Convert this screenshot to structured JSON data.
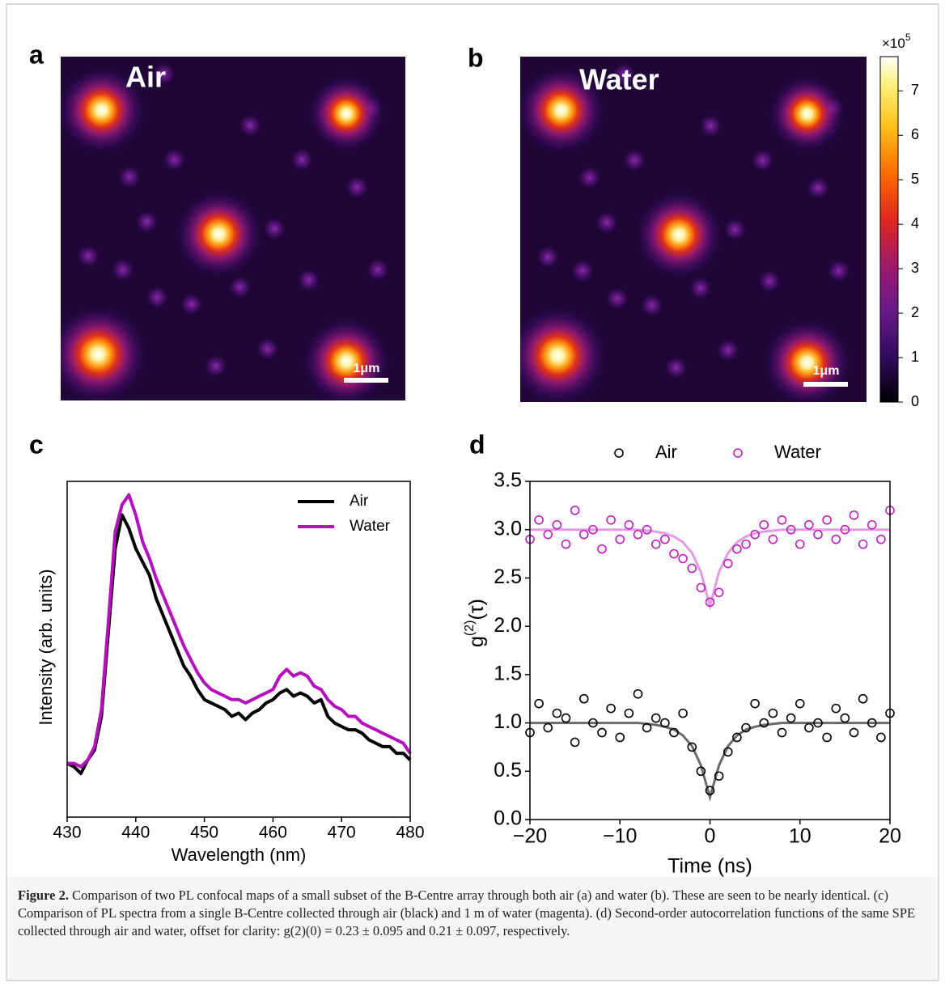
{
  "panels": {
    "a": {
      "letter": "a",
      "medium": "Air",
      "scalebar": "1μm"
    },
    "b": {
      "letter": "b",
      "medium": "Water",
      "scalebar": "1μm"
    }
  },
  "chart_data": [
    {
      "type": "colorbar",
      "ylim": [
        0,
        7.77
      ],
      "yticks": [
        0,
        1,
        2,
        3,
        4,
        5,
        6,
        7
      ],
      "multiplier": {
        "base": "×10",
        "exponent": "5"
      }
    },
    {
      "type": "line",
      "panel_label": "c",
      "xlabel": "Wavelength (nm)",
      "ylabel": "Intensity (arb. units)",
      "x": [
        430,
        431,
        432,
        433,
        434,
        435,
        436,
        437,
        438,
        439,
        440,
        441,
        442,
        443,
        444,
        445,
        446,
        447,
        448,
        449,
        450,
        451,
        452,
        453,
        454,
        455,
        456,
        457,
        458,
        459,
        460,
        461,
        462,
        463,
        464,
        465,
        466,
        467,
        468,
        469,
        470,
        471,
        472,
        473,
        474,
        475,
        476,
        477,
        478,
        479,
        480
      ],
      "xlim": [
        430,
        480
      ],
      "xticks": [
        430,
        440,
        450,
        460,
        470,
        480
      ],
      "ylim": [
        0,
        100
      ],
      "series": [
        {
          "name": "Air",
          "color": "#000000",
          "values": [
            16,
            15,
            13,
            17,
            20,
            30,
            55,
            80,
            90,
            86,
            80,
            76,
            72,
            65,
            60,
            55,
            50,
            45,
            42,
            38,
            35,
            34,
            33,
            32,
            30,
            31,
            29,
            31,
            32,
            34,
            35,
            37,
            38,
            36,
            37,
            36,
            34,
            35,
            30,
            28,
            27,
            26,
            26,
            25,
            23,
            22,
            21,
            21,
            19,
            19,
            17
          ]
        },
        {
          "name": "Water",
          "color": "#b60fbd",
          "values": [
            16,
            16,
            15,
            17,
            21,
            32,
            58,
            85,
            93,
            96,
            90,
            82,
            77,
            71,
            66,
            61,
            56,
            51,
            47,
            43,
            40,
            38,
            37,
            36,
            35,
            35,
            34,
            35,
            36,
            37,
            38,
            42,
            44,
            42,
            43,
            42,
            39,
            38,
            35,
            33,
            32,
            30,
            30,
            28,
            27,
            26,
            25,
            24,
            23,
            22,
            19
          ]
        }
      ]
    },
    {
      "type": "scatter",
      "panel_label": "d",
      "xlabel": "Time (ns)",
      "ylabel": {
        "base": "g",
        "superscript": "(2)",
        "rest": "(τ)"
      },
      "x": [
        -20,
        -19,
        -18,
        -17,
        -16,
        -15,
        -14,
        -13,
        -12,
        -11,
        -10,
        -9,
        -8,
        -7,
        -6,
        -5,
        -4,
        -3,
        -2,
        -1,
        0,
        1,
        2,
        3,
        4,
        5,
        6,
        7,
        8,
        9,
        10,
        11,
        12,
        13,
        14,
        15,
        16,
        17,
        18,
        19,
        20
      ],
      "xlim": [
        -20,
        20
      ],
      "xticks": [
        {
          "value": -20,
          "label": "−20"
        },
        {
          "value": -10,
          "label": "−10"
        },
        0,
        10,
        20
      ],
      "ylim": [
        0,
        3.5
      ],
      "yticks": [
        {
          "value": 0,
          "label": "0.0"
        },
        0.5,
        {
          "value": 1,
          "label": "1.0"
        },
        1.5,
        {
          "value": 2,
          "label": "2.0"
        },
        2.5,
        {
          "value": 3,
          "label": "3.0"
        },
        3.5
      ],
      "series": [
        {
          "name": "Air",
          "color": "#000000",
          "fit_color": "#6a6a6a",
          "values": [
            0.9,
            1.2,
            0.95,
            1.1,
            1.05,
            0.8,
            1.25,
            1.0,
            0.9,
            1.15,
            0.85,
            1.1,
            1.3,
            0.95,
            1.05,
            1.0,
            0.9,
            1.1,
            0.75,
            0.5,
            0.3,
            0.45,
            0.7,
            0.85,
            0.95,
            1.2,
            1.0,
            1.1,
            0.9,
            1.05,
            1.2,
            0.95,
            1.0,
            0.85,
            1.15,
            1.05,
            0.9,
            1.25,
            1.0,
            0.85,
            1.1
          ],
          "fit": [
            1,
            1,
            1,
            1,
            1,
            1,
            1,
            1,
            1,
            1,
            1,
            1,
            1,
            0.99,
            0.98,
            0.96,
            0.93,
            0.87,
            0.76,
            0.56,
            0.23,
            0.56,
            0.76,
            0.87,
            0.93,
            0.96,
            0.98,
            0.99,
            1,
            1,
            1,
            1,
            1,
            1,
            1,
            1,
            1,
            1,
            1,
            1,
            1
          ]
        },
        {
          "name": "Water",
          "color": "#c21cc2",
          "fit_color": "#e39be3",
          "values": [
            2.9,
            3.1,
            2.95,
            3.05,
            2.85,
            3.2,
            2.95,
            3.0,
            2.8,
            3.1,
            2.9,
            3.05,
            2.95,
            3.0,
            2.85,
            2.9,
            2.75,
            2.7,
            2.6,
            2.4,
            2.25,
            2.35,
            2.65,
            2.8,
            2.85,
            2.95,
            3.05,
            2.9,
            3.1,
            3.0,
            2.85,
            3.05,
            2.95,
            3.1,
            2.9,
            3.0,
            3.15,
            2.85,
            3.05,
            2.9,
            3.2
          ],
          "fit": [
            3,
            3,
            3,
            3,
            3,
            3,
            3,
            3,
            3,
            3,
            3,
            3,
            3,
            2.99,
            2.98,
            2.96,
            2.93,
            2.87,
            2.76,
            2.56,
            2.21,
            2.56,
            2.76,
            2.87,
            2.93,
            2.96,
            2.98,
            2.99,
            3,
            3,
            3,
            3,
            3,
            3,
            3,
            3,
            3,
            3,
            3,
            3,
            3
          ]
        }
      ]
    }
  ],
  "caption": {
    "label": "Figure 2.",
    "text": "Comparison of two PL confocal maps of a small subset of the B-Centre array through both air (a) and water (b). These are seen to be nearly identical. (c) Comparison of PL spectra from a single B-Centre collected through air (black) and 1 m of water (magenta). (d) Second-order autocorrelation functions of the same SPE collected through air and water, offset for clarity: g(2)(0) = 0.23 ± 0.095 and 0.21 ± 0.097, respectively."
  }
}
